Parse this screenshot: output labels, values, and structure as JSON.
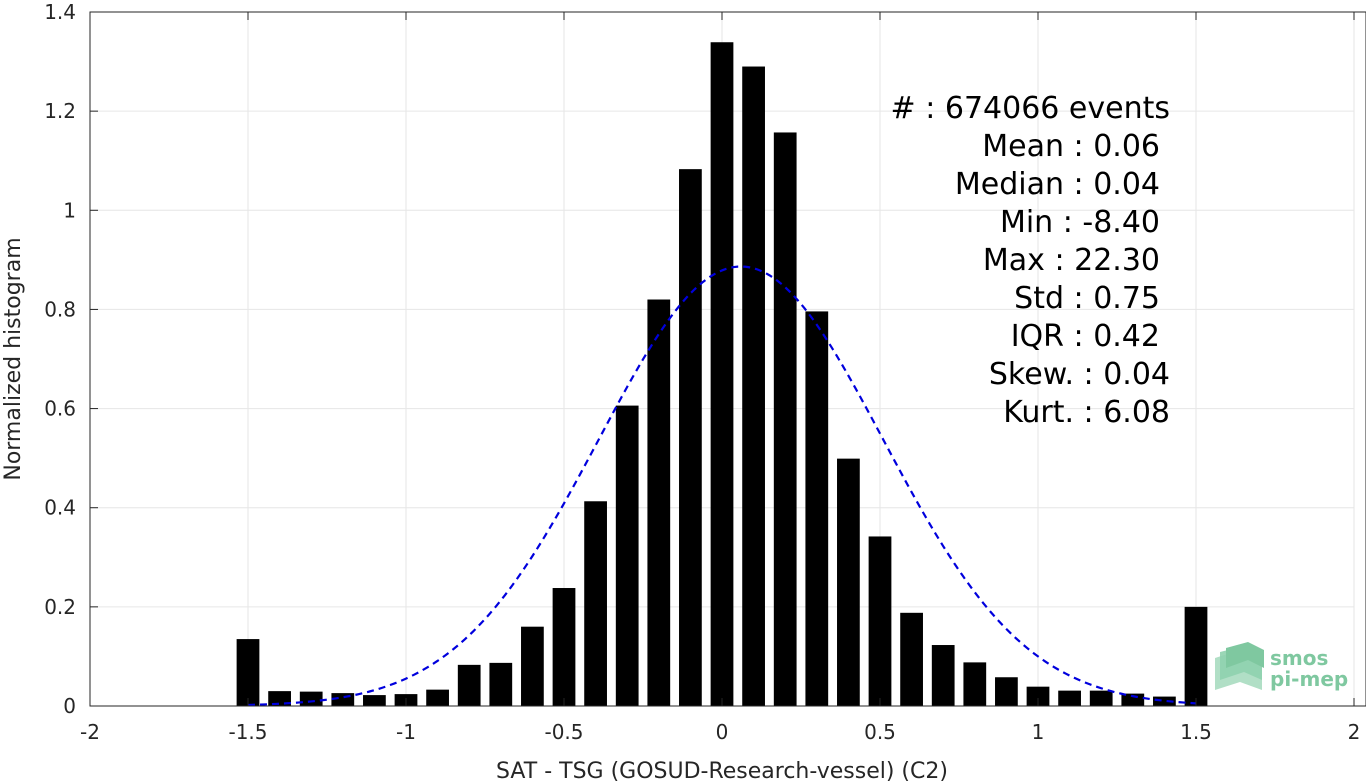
{
  "chart_data": {
    "type": "bar",
    "xlabel": "SAT - TSG (GOSUD-Research-vessel) (C2)",
    "ylabel": "Normalized histogram",
    "xlim": [
      -2,
      2
    ],
    "ylim": [
      0,
      1.4
    ],
    "xticks": [
      -2,
      -1.5,
      -1,
      -0.5,
      0,
      0.5,
      1,
      1.5,
      2
    ],
    "xtick_labels": [
      "-2",
      "-1.5",
      "-1",
      "-0.5",
      "0",
      "0.5",
      "1",
      "1.5",
      "2"
    ],
    "yticks": [
      0,
      0.2,
      0.4,
      0.6,
      0.8,
      1,
      1.2,
      1.4
    ],
    "ytick_labels": [
      "0",
      "0.2",
      "0.4",
      "0.6",
      "0.8",
      "1",
      "1.2",
      "1.4"
    ],
    "grid": true,
    "bar_color": "#000000",
    "bins": [
      -1.5,
      -1.4,
      -1.3,
      -1.2,
      -1.1,
      -1.0,
      -0.9,
      -0.8,
      -0.7,
      -0.6,
      -0.5,
      -0.4,
      -0.3,
      -0.2,
      -0.1,
      0.0,
      0.1,
      0.2,
      0.3,
      0.4,
      0.5,
      0.6,
      0.7,
      0.8,
      0.9,
      1.0,
      1.1,
      1.2,
      1.3,
      1.4,
      1.5
    ],
    "values": [
      0.135,
      0.03,
      0.029,
      0.026,
      0.022,
      0.024,
      0.033,
      0.083,
      0.087,
      0.16,
      0.238,
      0.413,
      0.606,
      0.82,
      1.083,
      1.339,
      1.29,
      1.157,
      0.796,
      0.499,
      0.342,
      0.188,
      0.123,
      0.088,
      0.058,
      0.039,
      0.031,
      0.031,
      0.025,
      0.019,
      0.2
    ],
    "fit": {
      "kind": "normal",
      "mean": 0.06,
      "std": 0.45,
      "x_range": [
        -1.5,
        1.5
      ],
      "color": "#0000dd",
      "style": "dashed"
    },
    "stats": [
      "#  : 674066 events",
      "Mean : 0.06",
      "Median : 0.04",
      "Min : -8.40",
      "Max : 22.30",
      "Std : 0.75",
      "IQR : 0.42",
      "Skew. : 0.04",
      "Kurt. : 6.08"
    ]
  },
  "logo": {
    "line1": "smos",
    "line2": "pi-mep",
    "color": "#7fc8a0"
  }
}
